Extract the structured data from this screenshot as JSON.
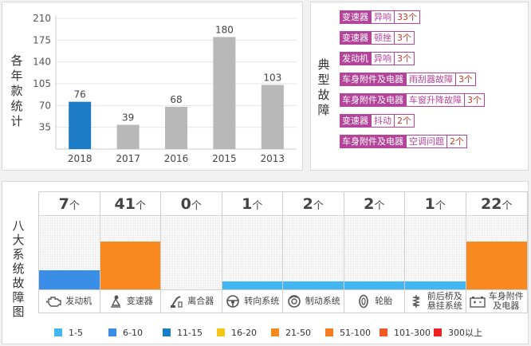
{
  "year_panel": {
    "side_label": "各年款统计"
  },
  "fault_panel": {
    "side_label": "典型故障",
    "items": [
      {
        "system": "变速器",
        "type": "异响",
        "count": "33个"
      },
      {
        "system": "变速器",
        "type": "顿挫",
        "count": "3个"
      },
      {
        "system": "发动机",
        "type": "异响",
        "count": "3个"
      },
      {
        "system": "车身附件及电器",
        "type": "雨刮器故障",
        "count": "3个"
      },
      {
        "system": "车身附件及电器",
        "type": "车窗升降故障",
        "count": "3个"
      },
      {
        "system": "变速器",
        "type": "抖动",
        "count": "2个"
      },
      {
        "system": "车身附件及电器",
        "type": "空调问题",
        "count": "2个"
      }
    ]
  },
  "systems_panel": {
    "side_label": "八大系统故障图",
    "unit": "个",
    "columns": [
      {
        "count": "7",
        "value": 7,
        "label": [
          "发动机"
        ],
        "icon": "engine-icon",
        "color": "#3a8ee6"
      },
      {
        "count": "41",
        "value": 41,
        "label": [
          "变速器"
        ],
        "icon": "gear-shift-icon",
        "color": "#f7891f"
      },
      {
        "count": "0",
        "value": 0,
        "label": [
          "离合器"
        ],
        "icon": "clutch-pedal-icon",
        "color": "#ffffff"
      },
      {
        "count": "1",
        "value": 1,
        "label": [
          "转向系统"
        ],
        "icon": "steering-wheel-icon",
        "color": "#42b6f2"
      },
      {
        "count": "2",
        "value": 2,
        "label": [
          "制动系统"
        ],
        "icon": "brake-disc-icon",
        "color": "#42b6f2"
      },
      {
        "count": "2",
        "value": 2,
        "label": [
          "轮胎"
        ],
        "icon": "tire-icon",
        "color": "#42b6f2"
      },
      {
        "count": "1",
        "value": 1,
        "label": [
          "前后桥及",
          "悬挂系统"
        ],
        "icon": "suspension-icon",
        "color": "#42b6f2"
      },
      {
        "count": "22",
        "value": 22,
        "label": [
          "车身附件",
          "及电器"
        ],
        "icon": "car-battery-icon",
        "color": "#f7891f"
      }
    ],
    "legend": [
      {
        "label": "1-5",
        "color": "#42b6f2"
      },
      {
        "label": "6-10",
        "color": "#3a8ee6"
      },
      {
        "label": "11-15",
        "color": "#1b7bc4"
      },
      {
        "label": "16-20",
        "color": "#f5c518"
      },
      {
        "label": "21-50",
        "color": "#f7891f"
      },
      {
        "label": "51-100",
        "color": "#f57c1f"
      },
      {
        "label": "101-300",
        "color": "#f05a22"
      },
      {
        "label": "300以上",
        "color": "#ee2222"
      }
    ]
  },
  "chart_data": {
    "type": "bar",
    "categories": [
      "2018",
      "2017",
      "2016",
      "2015",
      "2013"
    ],
    "values": [
      76,
      39,
      68,
      180,
      103
    ],
    "ylim": [
      0,
      210
    ],
    "yticks": [
      35,
      70,
      105,
      140,
      175,
      210
    ],
    "bar_colors": [
      "#1b7bc4",
      "#b8b8b8",
      "#b8b8b8",
      "#b8b8b8",
      "#b8b8b8"
    ],
    "ylabel": "各年款统计"
  }
}
